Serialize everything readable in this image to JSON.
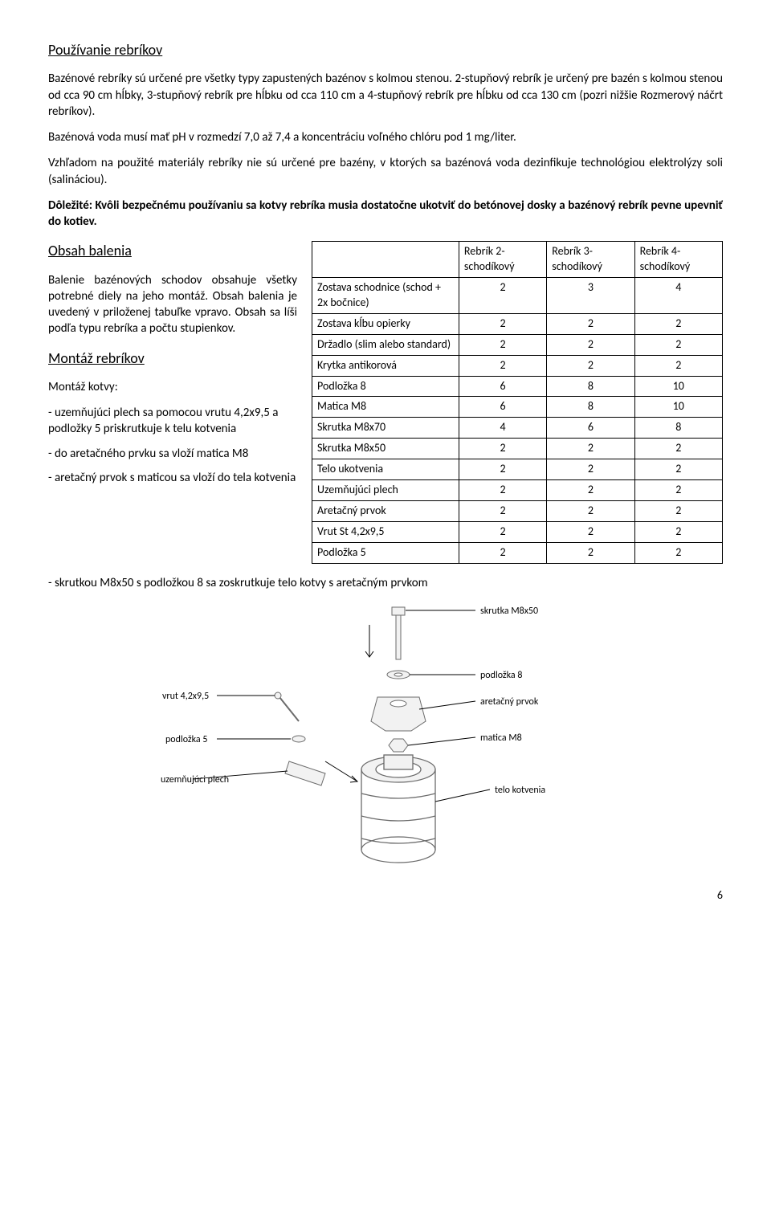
{
  "section1": {
    "heading": "Používanie rebríkov",
    "p1": "Bazénové rebríky sú určené pre všetky typy zapustených bazénov s kolmou stenou. 2-stupňový rebrík je určený pre bazén s kolmou stenou od cca 90 cm hĺbky, 3-stupňový rebrík pre hĺbku od cca 110 cm a 4-stupňový rebrík pre hĺbku od cca 130 cm (pozri nižšie Rozmerový náčrt rebríkov).",
    "p2": "Bazénová voda musí mať pH v rozmedzí 7,0 až 7,4 a koncentráciu voľného chlóru pod 1 mg/liter.",
    "p3": "Vzhľadom na použité materiály rebríky nie sú určené pre bazény, v ktorých sa bazénová voda dezinfikuje technológiou elektrolýzy soli (salináciou).",
    "p4": "Dôležité: Kvôli bezpečnému používaniu sa kotvy rebríka musia dostatočne ukotviť do betónovej dosky a bazénový rebrík pevne upevniť do kotiev."
  },
  "section2": {
    "heading": "Obsah balenia",
    "p1": "Balenie bazénových schodov obsahuje všetky potrebné diely na jeho montáž. Obsah balenia je uvedený v priloženej tabuľke vpravo. Obsah sa líši podľa typu rebríka a počtu stupienkov."
  },
  "section3": {
    "heading": "Montáž rebríkov",
    "sub": "Montáž kotvy:",
    "b1": "- uzemňujúci plech sa pomocou vrutu 4,2x9,5 a podložky 5 priskrutkuje k telu kotvenia",
    "b2": "- do aretačného prvku sa vloží matica M8",
    "b3": "- aretačný prvok s maticou sa vloží do tela kotvenia",
    "b4": "- skrutkou M8x50 s podložkou 8 sa zoskrutkuje telo kotvy s aretačným prvkom"
  },
  "table": {
    "headers": [
      "",
      "Rebrík 2-schodíkový",
      "Rebrík 3-schodíkový",
      "Rebrík 4-schodíkový"
    ],
    "rows": [
      [
        "Zostava schodnice (schod + 2x bočnice)",
        "2",
        "3",
        "4"
      ],
      [
        "Zostava kĺbu opierky",
        "2",
        "2",
        "2"
      ],
      [
        "Držadlo (slim alebo standard)",
        "2",
        "2",
        "2"
      ],
      [
        "Krytka antikorová",
        "2",
        "2",
        "2"
      ],
      [
        "Podložka 8",
        "6",
        "8",
        "10"
      ],
      [
        "Matica M8",
        "6",
        "8",
        "10"
      ],
      [
        "Skrutka M8x70",
        "4",
        "6",
        "8"
      ],
      [
        "Skrutka M8x50",
        "2",
        "2",
        "2"
      ],
      [
        "Telo ukotvenia",
        "2",
        "2",
        "2"
      ],
      [
        "Uzemňujúci plech",
        "2",
        "2",
        "2"
      ],
      [
        "Aretačný prvok",
        "2",
        "2",
        "2"
      ],
      [
        "Vrut St 4,2x9,5",
        "2",
        "2",
        "2"
      ],
      [
        "Podložka 5",
        "2",
        "2",
        "2"
      ]
    ]
  },
  "diagram": {
    "labels": {
      "skrutka": "skrutka M8x50",
      "podlozka8": "podložka 8",
      "aretacny": "aretačný prvok",
      "matica": "matica M8",
      "telo": "telo kotvenia",
      "vrut": "vrut 4,2x9,5",
      "podlozka5": "podložka 5",
      "uzemnujuci": "uzemňujúci plech"
    },
    "colors": {
      "stroke": "#6b6b6b",
      "fill_light": "#f2f2f2",
      "text": "#000000",
      "leader": "#000000"
    },
    "font_size": 12
  },
  "page_number": "6"
}
